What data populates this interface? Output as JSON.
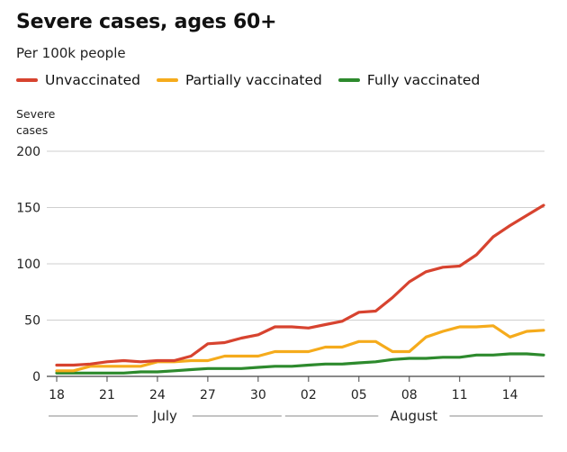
{
  "chart_data": {
    "type": "line",
    "title": "Severe cases, ages 60+",
    "subtitle": "Per 100k people",
    "ylabel_lines": [
      "Severe",
      "cases"
    ],
    "ylim": [
      0,
      200
    ],
    "yticks": [
      0,
      50,
      100,
      150,
      200
    ],
    "x": [
      "Jul 18",
      "Jul 19",
      "Jul 20",
      "Jul 21",
      "Jul 22",
      "Jul 23",
      "Jul 24",
      "Jul 25",
      "Jul 26",
      "Jul 27",
      "Jul 28",
      "Jul 29",
      "Jul 30",
      "Jul 31",
      "Aug 01",
      "Aug 02",
      "Aug 03",
      "Aug 04",
      "Aug 05",
      "Aug 06",
      "Aug 07",
      "Aug 08",
      "Aug 09",
      "Aug 10",
      "Aug 11",
      "Aug 12",
      "Aug 13",
      "Aug 14",
      "Aug 15",
      "Aug 16"
    ],
    "xtick_labels": [
      {
        "index": 0,
        "label": "18"
      },
      {
        "index": 3,
        "label": "21"
      },
      {
        "index": 6,
        "label": "24"
      },
      {
        "index": 9,
        "label": "27"
      },
      {
        "index": 12,
        "label": "30"
      },
      {
        "index": 15,
        "label": "02"
      },
      {
        "index": 18,
        "label": "05"
      },
      {
        "index": 21,
        "label": "08"
      },
      {
        "index": 24,
        "label": "11"
      },
      {
        "index": 27,
        "label": "14"
      }
    ],
    "months": [
      {
        "label": "July",
        "start": 0,
        "end": 13
      },
      {
        "label": "August",
        "start": 14,
        "end": 29
      }
    ],
    "grid": true,
    "legend_position": "top",
    "series": [
      {
        "name": "Unvaccinated",
        "color": "#d7432f",
        "values": [
          10,
          10,
          11,
          13,
          14,
          13,
          14,
          14,
          18,
          29,
          30,
          34,
          37,
          44,
          44,
          43,
          46,
          49,
          57,
          58,
          70,
          84,
          93,
          97,
          98,
          108,
          124,
          134,
          143,
          152
        ]
      },
      {
        "name": "Partially vaccinated",
        "color": "#f5ab1c",
        "values": [
          5,
          5,
          9,
          9,
          9,
          9,
          13,
          13,
          14,
          14,
          18,
          18,
          18,
          22,
          22,
          22,
          26,
          26,
          31,
          31,
          22,
          22,
          35,
          40,
          44,
          44,
          45,
          35,
          40,
          41
        ]
      },
      {
        "name": "Fully vaccinated",
        "color": "#2d8a2d",
        "values": [
          3,
          3,
          3,
          3,
          3,
          4,
          4,
          5,
          6,
          7,
          7,
          7,
          8,
          9,
          9,
          10,
          11,
          11,
          12,
          13,
          15,
          16,
          16,
          17,
          17,
          19,
          19,
          20,
          20,
          19
        ]
      }
    ]
  }
}
